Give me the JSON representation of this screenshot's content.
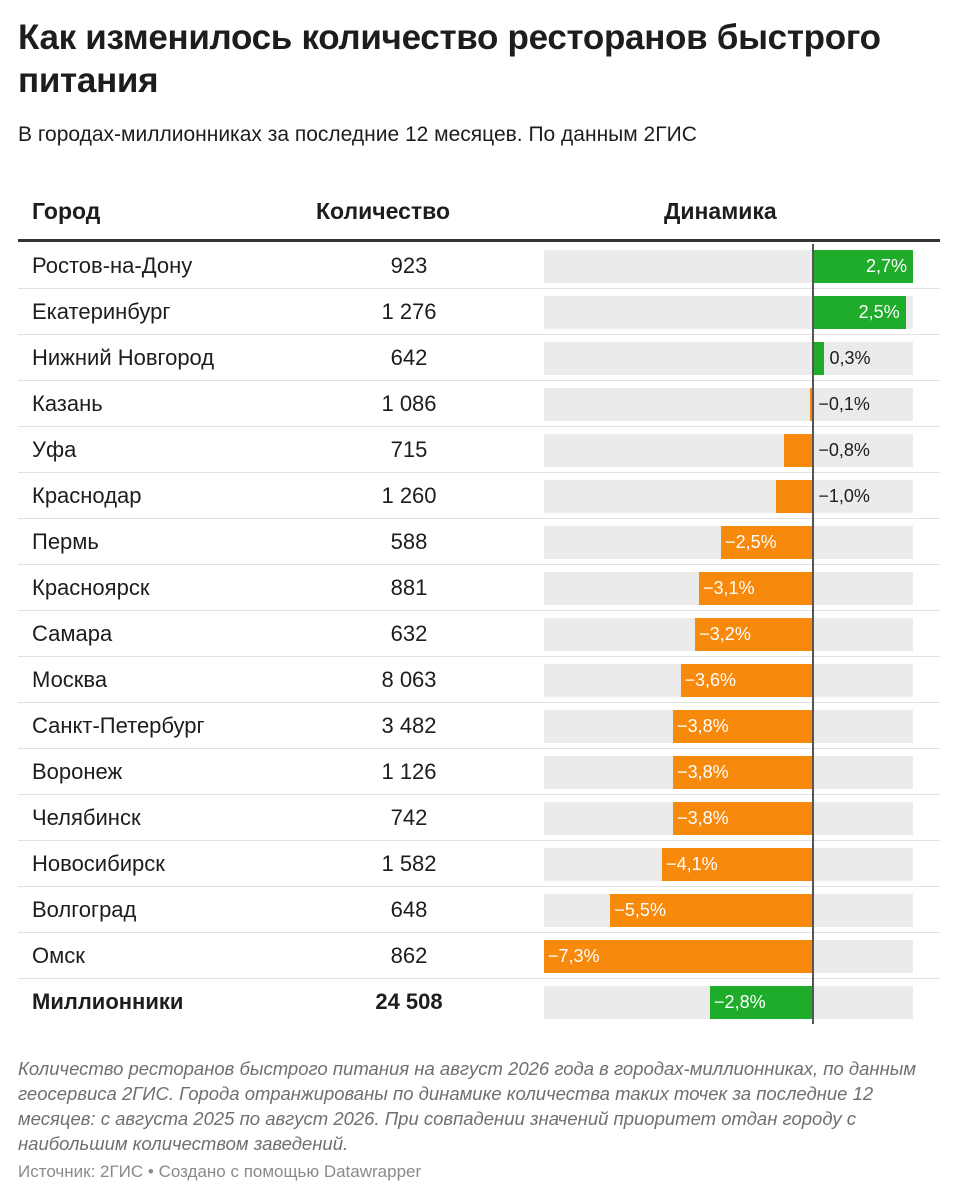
{
  "title": "Как изменилось количество ресторанов быстрого питания",
  "subtitle": "В городах-миллионниках за последние 12 месяцев. По данным 2ГИС",
  "columns": {
    "city": "Город",
    "count": "Количество",
    "dynamics": "Динамика"
  },
  "colors": {
    "positive": "#1fac2b",
    "negative": "#f7890c",
    "track": "#ebebeb"
  },
  "chart_data": {
    "type": "bar",
    "orientation": "horizontal",
    "categories": [
      "Ростов-на-Дону",
      "Екатеринбург",
      "Нижний Новгород",
      "Казань",
      "Уфа",
      "Краснодар",
      "Пермь",
      "Красноярск",
      "Самара",
      "Москва",
      "Санкт-Петербург",
      "Воронеж",
      "Челябинск",
      "Новосибирск",
      "Волгоград",
      "Омск",
      "Миллионники"
    ],
    "counts": [
      "923",
      "1 276",
      "642",
      "1 086",
      "715",
      "1 260",
      "588",
      "881",
      "632",
      "8 063",
      "3 482",
      "1 126",
      "742",
      "1 582",
      "648",
      "862",
      "24 508"
    ],
    "values": [
      2.7,
      2.5,
      0.3,
      -0.1,
      -0.8,
      -1.0,
      -2.5,
      -3.1,
      -3.2,
      -3.6,
      -3.8,
      -3.8,
      -3.8,
      -4.1,
      -5.5,
      -7.3,
      -2.8
    ],
    "labels": [
      "2,7%",
      "2,5%",
      "0,3%",
      "−0,1%",
      "−0,8%",
      "−1,0%",
      "−2,5%",
      "−3,1%",
      "−3,2%",
      "−3,6%",
      "−3,8%",
      "−3,8%",
      "−3,8%",
      "−4,1%",
      "−5,5%",
      "−7,3%",
      "−2,8%"
    ],
    "bar_colors": [
      "positive",
      "positive",
      "positive",
      "negative",
      "negative",
      "negative",
      "negative",
      "negative",
      "negative",
      "negative",
      "negative",
      "negative",
      "negative",
      "negative",
      "negative",
      "negative",
      "positive"
    ],
    "total_row": "Миллионники",
    "xlim": [
      -7.3,
      2.7
    ]
  },
  "note": "Количество ресторанов быстрого питания на август 2026 года в городах-миллионниках, по данным геосервиса 2ГИС. Города отранжированы по динамике количества таких точек за последние 12 месяцев: с августа 2025 по август 2026. При совпадении значений приоритет отдан городу с наибольшим количеством заведений.",
  "source": "Источник: 2ГИС • Создано с помощью Datawrapper"
}
